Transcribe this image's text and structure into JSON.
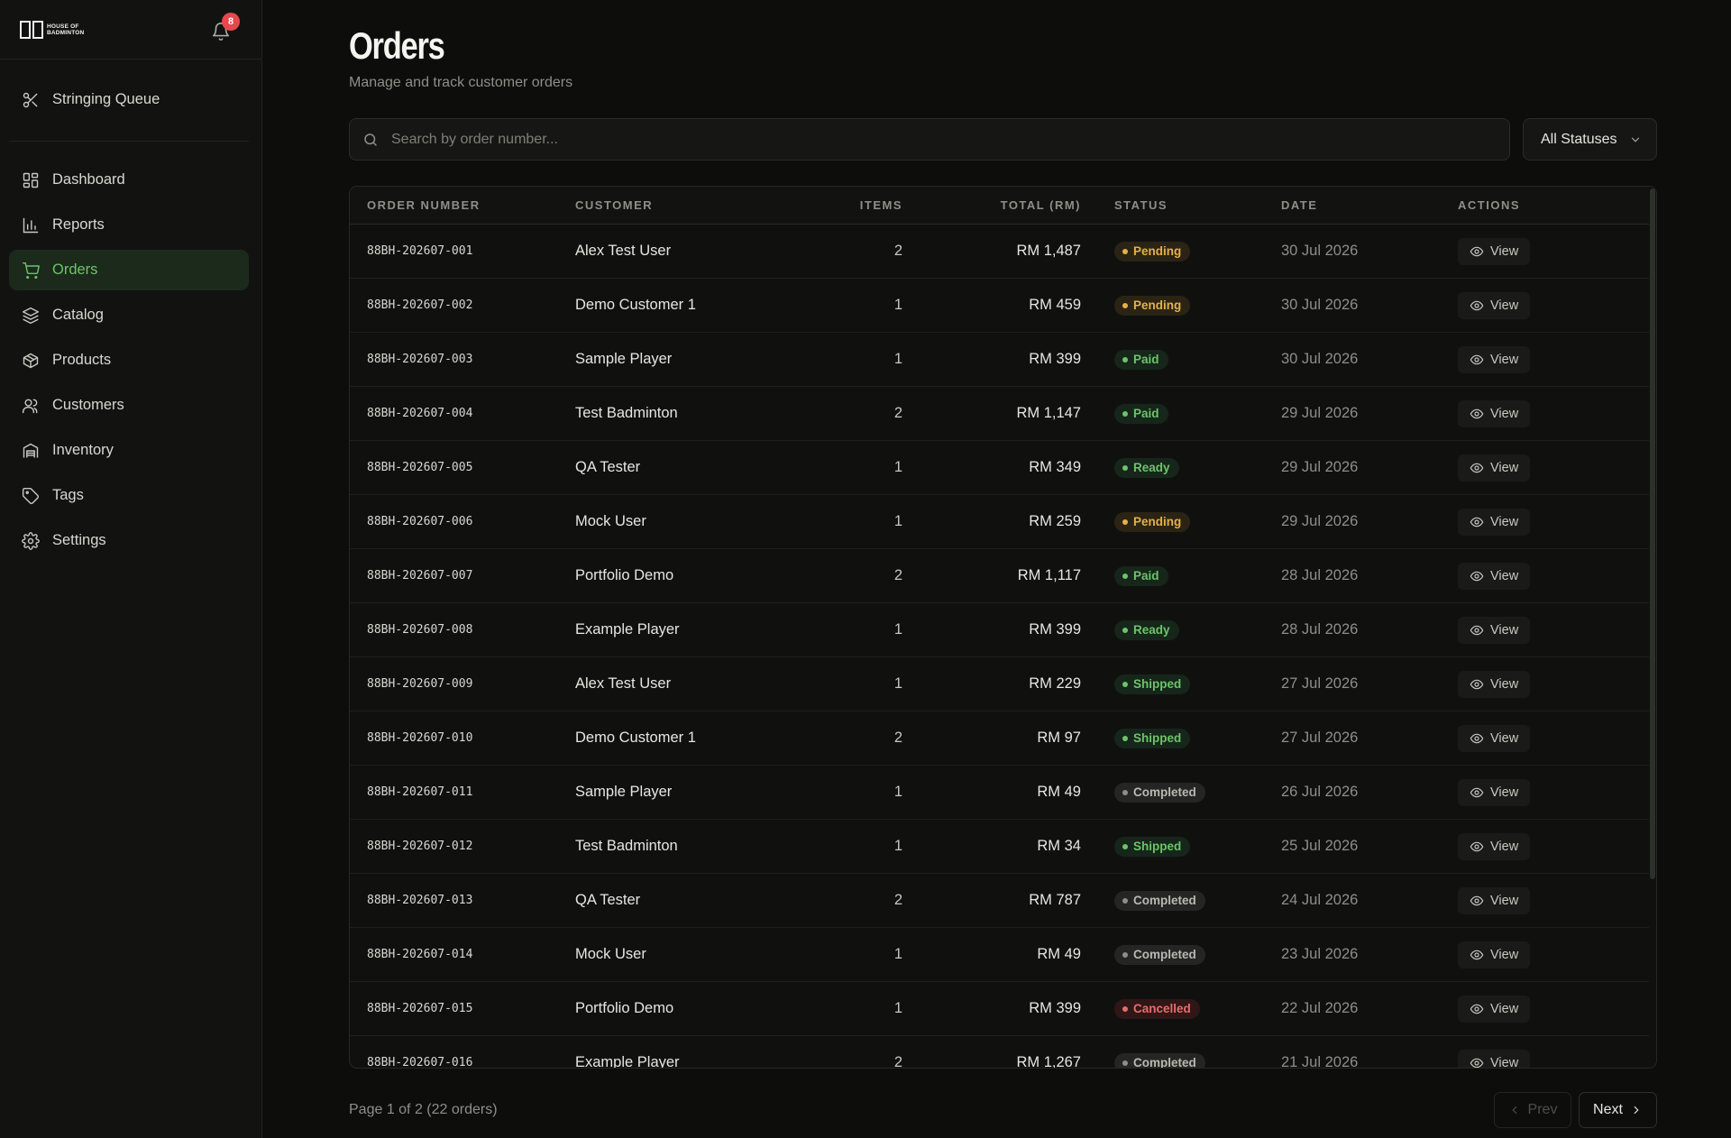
{
  "brand": {
    "logo_text_line1": "HOUSE OF",
    "logo_text_line2": "BADMINTON"
  },
  "notifications": {
    "count": "8"
  },
  "sidebar": {
    "top_items": [
      {
        "label": "Stringing Queue",
        "icon": "scissors-icon"
      }
    ],
    "items": [
      {
        "label": "Dashboard",
        "icon": "dashboard-icon"
      },
      {
        "label": "Reports",
        "icon": "bar-chart-icon"
      },
      {
        "label": "Orders",
        "icon": "cart-icon",
        "active": true
      },
      {
        "label": "Catalog",
        "icon": "layers-icon"
      },
      {
        "label": "Products",
        "icon": "box-icon"
      },
      {
        "label": "Customers",
        "icon": "users-icon"
      },
      {
        "label": "Inventory",
        "icon": "warehouse-icon"
      },
      {
        "label": "Tags",
        "icon": "tag-icon"
      },
      {
        "label": "Settings",
        "icon": "gear-icon"
      }
    ]
  },
  "page": {
    "title": "Orders",
    "subtitle": "Manage and track customer orders",
    "search_placeholder": "Search by order number...",
    "status_filter": "All Statuses"
  },
  "table": {
    "headers": {
      "order": "ORDER NUMBER",
      "customer": "CUSTOMER",
      "items": "ITEMS",
      "total": "TOTAL (RM)",
      "status": "STATUS",
      "date": "DATE",
      "actions": "ACTIONS"
    },
    "action_label": "View",
    "rows": [
      {
        "order": "88BH-202607-001",
        "customer": "Alex Test User",
        "items": "2",
        "total": "RM 1,487",
        "status": "Pending",
        "date": "30 Jul 2026"
      },
      {
        "order": "88BH-202607-002",
        "customer": "Demo Customer 1",
        "items": "1",
        "total": "RM 459",
        "status": "Pending",
        "date": "30 Jul 2026"
      },
      {
        "order": "88BH-202607-003",
        "customer": "Sample Player",
        "items": "1",
        "total": "RM 399",
        "status": "Paid",
        "date": "30 Jul 2026"
      },
      {
        "order": "88BH-202607-004",
        "customer": "Test Badminton",
        "items": "2",
        "total": "RM 1,147",
        "status": "Paid",
        "date": "29 Jul 2026"
      },
      {
        "order": "88BH-202607-005",
        "customer": "QA Tester",
        "items": "1",
        "total": "RM 349",
        "status": "Ready",
        "date": "29 Jul 2026"
      },
      {
        "order": "88BH-202607-006",
        "customer": "Mock User",
        "items": "1",
        "total": "RM 259",
        "status": "Pending",
        "date": "29 Jul 2026"
      },
      {
        "order": "88BH-202607-007",
        "customer": "Portfolio Demo",
        "items": "2",
        "total": "RM 1,117",
        "status": "Paid",
        "date": "28 Jul 2026"
      },
      {
        "order": "88BH-202607-008",
        "customer": "Example Player",
        "items": "1",
        "total": "RM 399",
        "status": "Ready",
        "date": "28 Jul 2026"
      },
      {
        "order": "88BH-202607-009",
        "customer": "Alex Test User",
        "items": "1",
        "total": "RM 229",
        "status": "Shipped",
        "date": "27 Jul 2026"
      },
      {
        "order": "88BH-202607-010",
        "customer": "Demo Customer 1",
        "items": "2",
        "total": "RM 97",
        "status": "Shipped",
        "date": "27 Jul 2026"
      },
      {
        "order": "88BH-202607-011",
        "customer": "Sample Player",
        "items": "1",
        "total": "RM 49",
        "status": "Completed",
        "date": "26 Jul 2026"
      },
      {
        "order": "88BH-202607-012",
        "customer": "Test Badminton",
        "items": "1",
        "total": "RM 34",
        "status": "Shipped",
        "date": "25 Jul 2026"
      },
      {
        "order": "88BH-202607-013",
        "customer": "QA Tester",
        "items": "2",
        "total": "RM 787",
        "status": "Completed",
        "date": "24 Jul 2026"
      },
      {
        "order": "88BH-202607-014",
        "customer": "Mock User",
        "items": "1",
        "total": "RM 49",
        "status": "Completed",
        "date": "23 Jul 2026"
      },
      {
        "order": "88BH-202607-015",
        "customer": "Portfolio Demo",
        "items": "1",
        "total": "RM 399",
        "status": "Cancelled",
        "date": "22 Jul 2026"
      },
      {
        "order": "88BH-202607-016",
        "customer": "Example Player",
        "items": "2",
        "total": "RM 1,267",
        "status": "Completed",
        "date": "21 Jul 2026"
      }
    ]
  },
  "pagination": {
    "summary": "Page 1 of 2 (22 orders)",
    "prev_label": "Prev",
    "next_label": "Next"
  },
  "colors": {
    "accent": "#6cc46a",
    "pending": "#e5b04a",
    "cancelled": "#ea6b6b",
    "badge": "#e5484d"
  }
}
